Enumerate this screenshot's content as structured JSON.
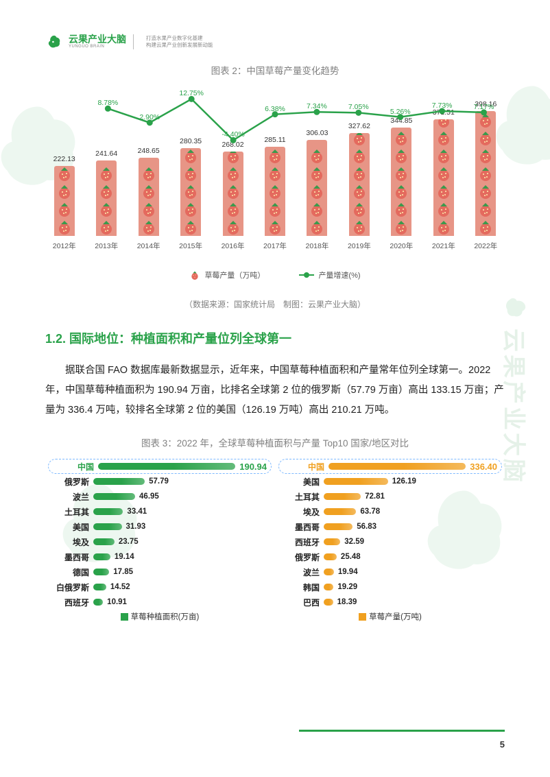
{
  "header": {
    "brand_cn": "云果产业大脑",
    "brand_en": "YUNGUO BRAIN",
    "tagline_l1": "打造水果产业数字化基建",
    "tagline_l2": "构建云果产业创新发展新动能"
  },
  "watermark": {
    "cn": "云果产业大脑",
    "en": "YUNGUO BRAIN"
  },
  "chart2": {
    "title": "图表 2：中国草莓产量变化趋势",
    "type": "bar+line",
    "categories": [
      "2012年",
      "2013年",
      "2014年",
      "2015年",
      "2016年",
      "2017年",
      "2018年",
      "2019年",
      "2020年",
      "2021年",
      "2022年"
    ],
    "bar_values": [
      222.13,
      241.64,
      248.65,
      280.35,
      268.02,
      285.11,
      306.03,
      327.62,
      344.85,
      371.51,
      398.16
    ],
    "bar_labels": [
      "222.13",
      "241.64",
      "248.65",
      "280.35",
      "268.02",
      "285.11",
      "306.03",
      "327.62",
      "344.85",
      "371.51",
      "398.16"
    ],
    "line_values": [
      null,
      8.78,
      2.9,
      12.75,
      -4.4,
      6.38,
      7.34,
      7.05,
      5.26,
      7.73,
      7.17
    ],
    "line_labels": [
      "",
      "8.78%",
      "2.90%",
      "12.75%",
      "-4.40%",
      "6.38%",
      "7.34%",
      "7.05%",
      "5.26%",
      "7.73%",
      "7.17%"
    ],
    "bar_color": "#e79586",
    "line_color": "#2aa24a",
    "line_y_min": -6,
    "line_y_max": 14,
    "bar_y_max": 420,
    "legend_bar": "草莓产量（万吨）",
    "legend_line": "产量增速(%)",
    "source": "（数据来源：国家统计局　制图：云果产业大脑）"
  },
  "section2": {
    "heading": "1.2. 国际地位：种植面积和产量位列全球第一",
    "paragraph": "据联合国 FAO 数据库最新数据显示，近年来，中国草莓种植面积和产量常年位列全球第一。2022 年，中国草莓种植面积为 190.94 万亩，比排名全球第 2 位的俄罗斯（57.79 万亩）高出 133.15 万亩；产量为 336.4 万吨，较排名全球第 2 位的美国（126.19 万吨）高出 210.21 万吨。"
  },
  "chart3": {
    "title": "图表 3：2022 年，全球草莓种植面积与产量 Top10 国家/地区对比",
    "left": {
      "color": "#2aa24a",
      "legend": "草莓种植面积(万亩)",
      "max": 200,
      "rows": [
        {
          "label": "中国",
          "value": 190.94,
          "hl": true
        },
        {
          "label": "俄罗斯",
          "value": 57.79
        },
        {
          "label": "波兰",
          "value": 46.95
        },
        {
          "label": "土耳其",
          "value": 33.41
        },
        {
          "label": "美国",
          "value": 31.93
        },
        {
          "label": "埃及",
          "value": 23.75
        },
        {
          "label": "墨西哥",
          "value": 19.14
        },
        {
          "label": "德国",
          "value": 17.85
        },
        {
          "label": "白俄罗斯",
          "value": 14.52
        },
        {
          "label": "西班牙",
          "value": 10.91
        }
      ]
    },
    "right": {
      "color": "#f0a020",
      "legend": "草莓产量(万吨)",
      "max": 350,
      "rows": [
        {
          "label": "中国",
          "value": 336.4,
          "hl": true,
          "display": "336.40"
        },
        {
          "label": "美国",
          "value": 126.19
        },
        {
          "label": "土耳其",
          "value": 72.81
        },
        {
          "label": "埃及",
          "value": 63.78
        },
        {
          "label": "墨西哥",
          "value": 56.83
        },
        {
          "label": "西班牙",
          "value": 32.59
        },
        {
          "label": "俄罗斯",
          "value": 25.48
        },
        {
          "label": "波兰",
          "value": 19.94
        },
        {
          "label": "韩国",
          "value": 19.29
        },
        {
          "label": "巴西",
          "value": 18.39
        }
      ]
    }
  },
  "page_number": "5"
}
